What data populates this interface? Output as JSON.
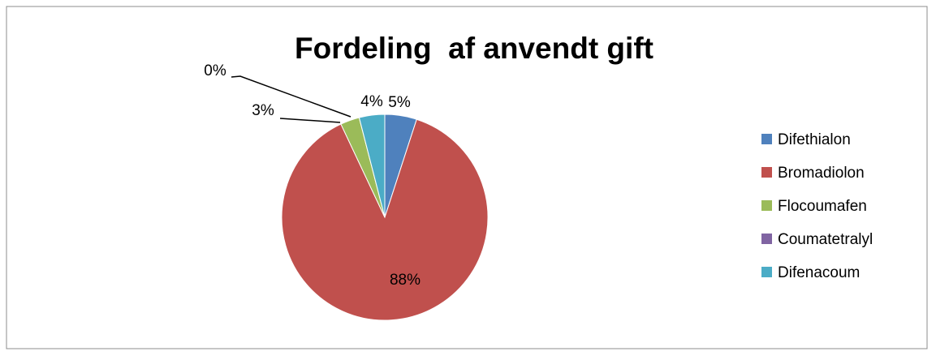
{
  "chart_data": {
    "type": "pie",
    "title": "Fordeling  af anvendt gift",
    "legend_position": "right",
    "slices": [
      {
        "name": "Difethialon",
        "value": 5,
        "label": "5%",
        "color": "#4F81BD"
      },
      {
        "name": "Bromadiolon",
        "value": 88,
        "label": "88%",
        "color": "#C0504D"
      },
      {
        "name": "Flocoumafen",
        "value": 3,
        "label": "3%",
        "color": "#9BBB59"
      },
      {
        "name": "Coumatetralyl",
        "value": 0,
        "label": "0%",
        "color": "#8064A2"
      },
      {
        "name": "Difenacoum",
        "value": 4,
        "label": "4%",
        "color": "#4BACC6"
      }
    ]
  }
}
